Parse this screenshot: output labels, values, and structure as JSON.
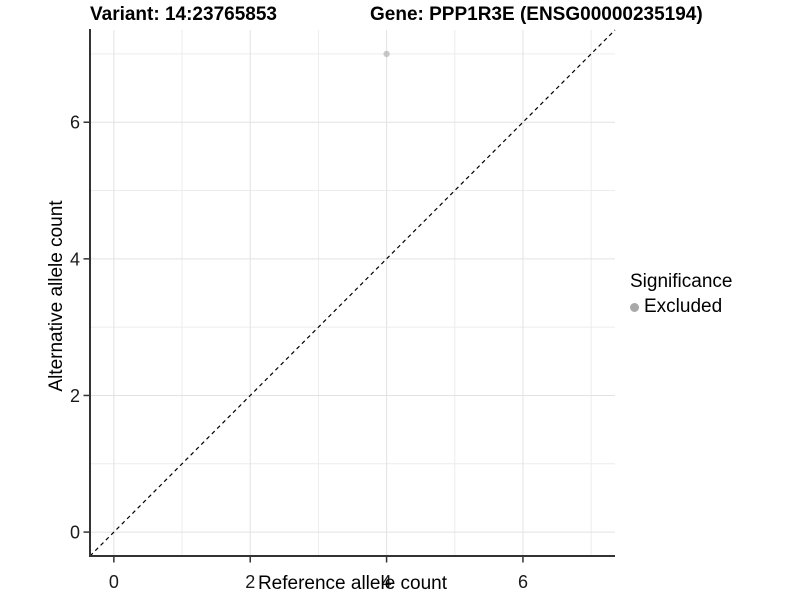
{
  "figure": {
    "variant_title": "Variant: 14:23765853",
    "gene_title": "Gene: PPP1R3E (ENSG00000235194)"
  },
  "chart_data": {
    "type": "scatter",
    "title_left": "Variant: 14:23765853",
    "title_right": "Gene: PPP1R3E (ENSG00000235194)",
    "xlabel": "Reference allele count",
    "ylabel": "Alternative allele count",
    "xlim": [
      -0.35,
      7.35
    ],
    "ylim": [
      -0.35,
      7.35
    ],
    "x_major_ticks": [
      0,
      2,
      4,
      6
    ],
    "y_major_ticks": [
      0,
      2,
      4,
      6
    ],
    "x_minor_gridlines": [
      1,
      3,
      5,
      7
    ],
    "y_minor_gridlines": [
      1,
      3,
      5,
      7
    ],
    "grid": true,
    "reference_line": {
      "type": "identity",
      "style": "dashed",
      "from": [
        -0.35,
        -0.35
      ],
      "to": [
        7.35,
        7.35
      ],
      "color": "#000000"
    },
    "series": [
      {
        "name": "Excluded",
        "color": "#A9A9A9",
        "points": [
          {
            "x": 4,
            "y": 7
          }
        ]
      }
    ],
    "legend": {
      "title": "Significance",
      "position": "right",
      "items": [
        {
          "label": "Excluded",
          "color": "#A9A9A9"
        }
      ]
    },
    "style": {
      "axis_line_color": "#333333",
      "tick_color": "#333333",
      "tick_label_color": "#1a1a1a",
      "grid_major_color": "#E2E2E2",
      "grid_minor_color": "#ECECEC",
      "point_opacity": 0.6
    }
  }
}
